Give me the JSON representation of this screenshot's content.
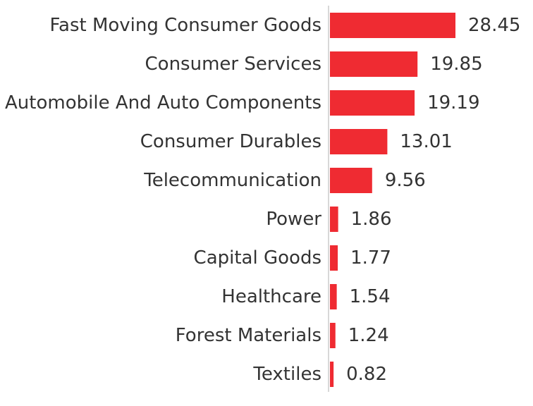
{
  "chart_data": {
    "type": "bar",
    "orientation": "horizontal",
    "title": "",
    "xlabel": "",
    "ylabel": "",
    "grid": false,
    "categories": [
      "Fast Moving Consumer Goods",
      "Consumer Services",
      "Automobile And Auto Components",
      "Consumer Durables",
      "Telecommunication",
      "Power",
      "Capital Goods",
      "Healthcare",
      "Forest Materials",
      "Textiles"
    ],
    "values": [
      28.45,
      19.85,
      19.19,
      13.01,
      9.56,
      1.86,
      1.77,
      1.54,
      1.24,
      0.82
    ],
    "value_labels": [
      "28.45",
      "19.85",
      "19.19",
      "13.01",
      "9.56",
      "1.86",
      "1.77",
      "1.54",
      "1.24",
      "0.82"
    ],
    "xlim": [
      0,
      28.45
    ],
    "bar_color": "#ef2b32",
    "axis_color": "#cccccc"
  }
}
